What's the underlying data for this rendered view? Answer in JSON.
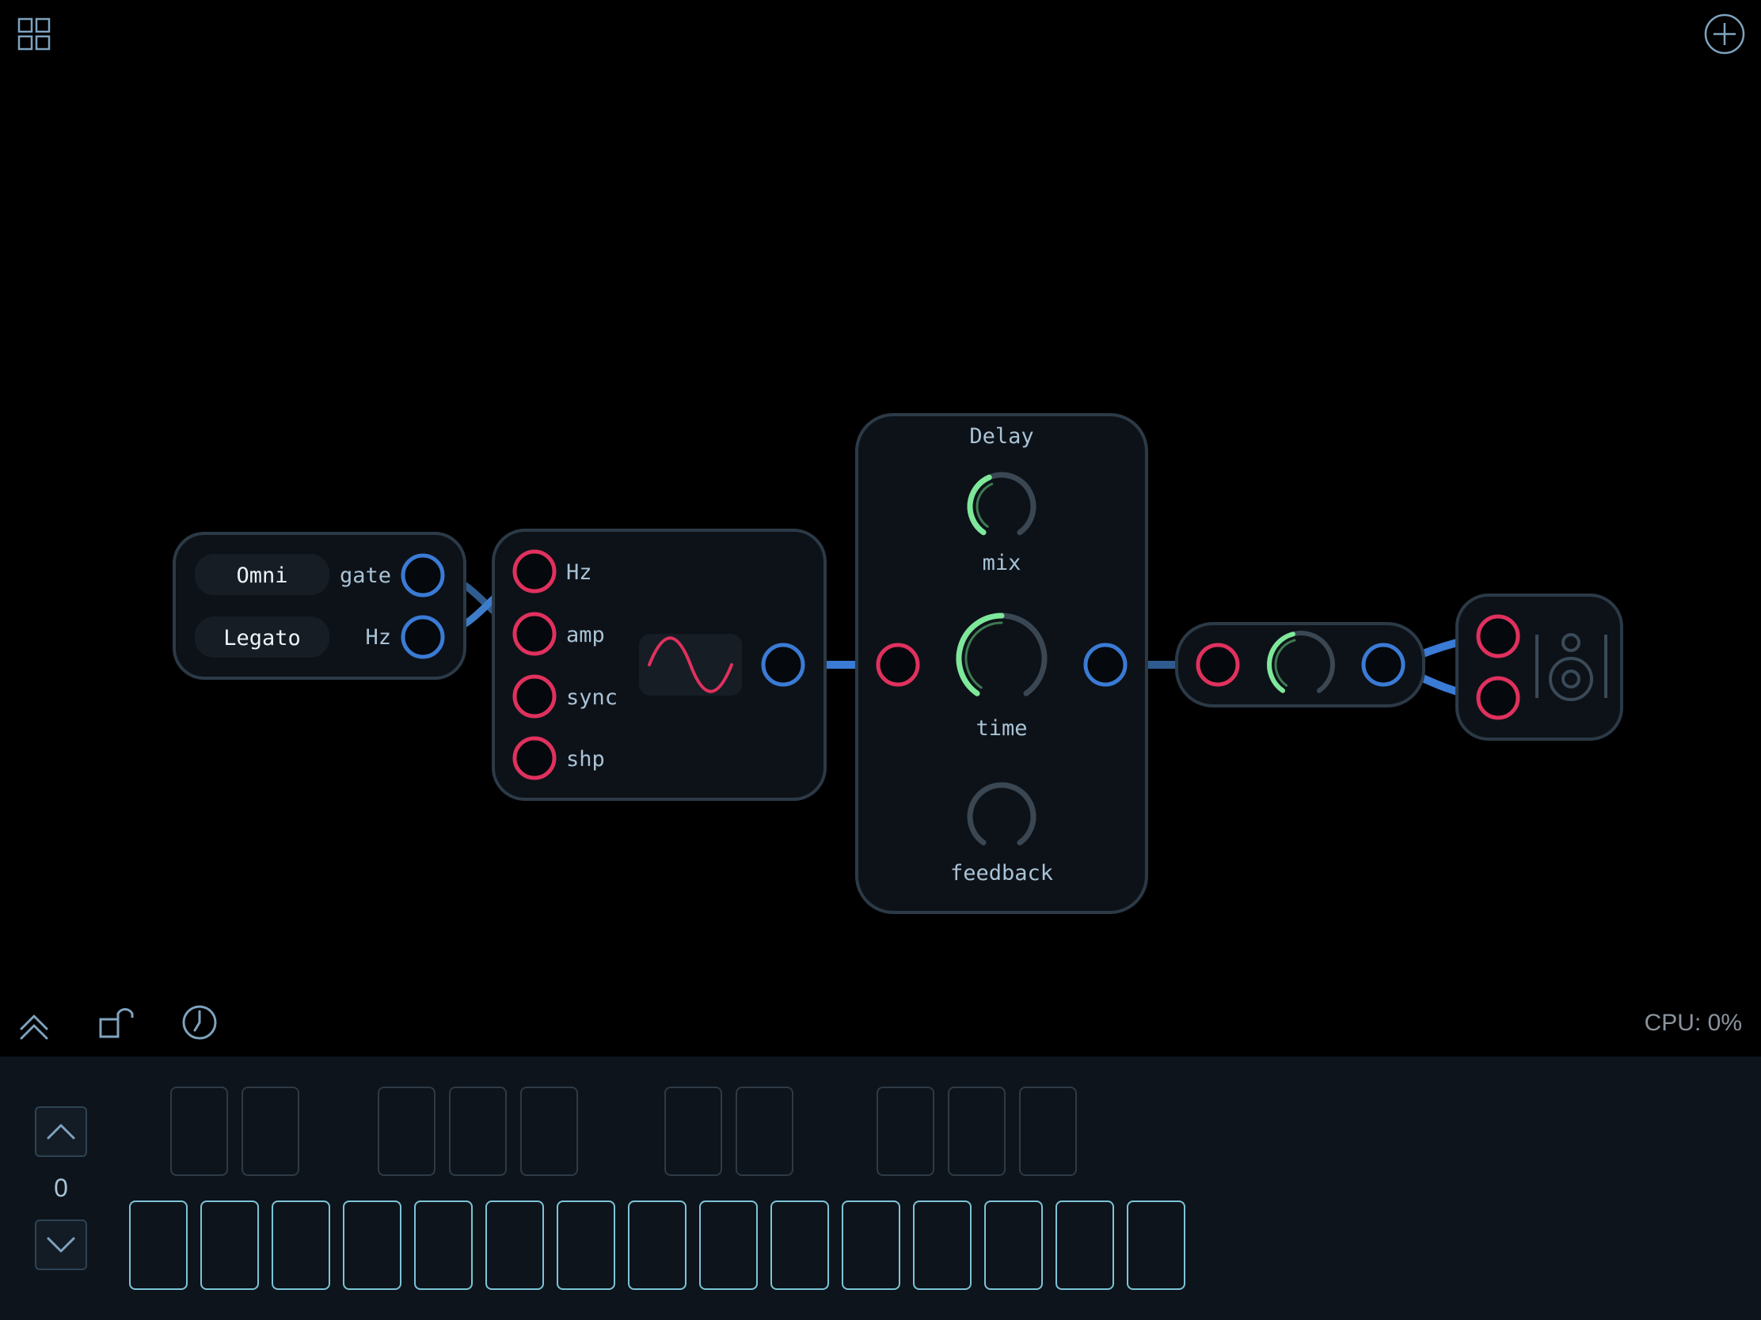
{
  "toolbar": {
    "grid_icon": "grid-icon",
    "add_icon": "plus-circle-icon",
    "collapse_icon": "double-chevron-up-icon",
    "lock_icon": "unlock-icon",
    "clock_icon": "clock-icon",
    "cpu_label": "CPU: 0%"
  },
  "midi_input": {
    "omni_label": "Omni",
    "legato_label": "Legato",
    "gate_label": "gate",
    "hz_label": "Hz"
  },
  "oscillator": {
    "inputs": [
      "Hz",
      "amp",
      "sync",
      "shp"
    ],
    "waveform_icon": "sine-wave-icon"
  },
  "delay": {
    "title": "Delay",
    "knobs": [
      {
        "label": "mix",
        "value": 0.42
      },
      {
        "label": "time",
        "value": 0.5
      },
      {
        "label": "feedback",
        "value": 0.0
      }
    ]
  },
  "gain": {
    "knob_value": 0.45
  },
  "output": {
    "speaker_icon": "speaker-icon"
  },
  "keyboard": {
    "octave": "0",
    "octave_up_icon": "chevron-up-icon",
    "octave_down_icon": "chevron-down-icon",
    "white_key_count": 15,
    "black_key_count": 10
  },
  "colors": {
    "input_port": "#e0315e",
    "output_port": "#3a7bd5",
    "knob_active": "#7ee89a",
    "module_border": "#2c3a47",
    "module_fill": "#0d1218"
  }
}
